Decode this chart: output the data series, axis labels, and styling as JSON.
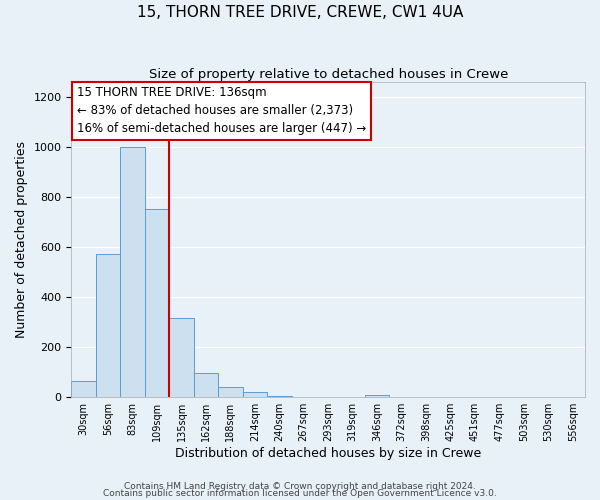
{
  "title": "15, THORN TREE DRIVE, CREWE, CW1 4UA",
  "subtitle": "Size of property relative to detached houses in Crewe",
  "xlabel": "Distribution of detached houses by size in Crewe",
  "ylabel": "Number of detached properties",
  "bin_labels": [
    "30sqm",
    "56sqm",
    "83sqm",
    "109sqm",
    "135sqm",
    "162sqm",
    "188sqm",
    "214sqm",
    "240sqm",
    "267sqm",
    "293sqm",
    "319sqm",
    "346sqm",
    "372sqm",
    "398sqm",
    "425sqm",
    "451sqm",
    "477sqm",
    "503sqm",
    "530sqm",
    "556sqm"
  ],
  "bin_values": [
    65,
    570,
    1000,
    750,
    315,
    95,
    40,
    20,
    5,
    0,
    0,
    0,
    10,
    0,
    0,
    0,
    0,
    0,
    0,
    0,
    0
  ],
  "bar_color": "#cce0f0",
  "bar_edge_color": "#5b9bd5",
  "background_color": "#e8f0f8",
  "grid_color": "#ffffff",
  "property_line_x": 4,
  "property_line_color": "#cc0000",
  "ylim": [
    0,
    1260
  ],
  "yticks": [
    0,
    200,
    400,
    600,
    800,
    1000,
    1200
  ],
  "annotation_title": "15 THORN TREE DRIVE: 136sqm",
  "annotation_line1": "← 83% of detached houses are smaller (2,373)",
  "annotation_line2": "16% of semi-detached houses are larger (447) →",
  "annotation_box_color": "#ffffff",
  "annotation_box_edge": "#cc0000",
  "footnote1": "Contains HM Land Registry data © Crown copyright and database right 2024.",
  "footnote2": "Contains public sector information licensed under the Open Government Licence v3.0."
}
